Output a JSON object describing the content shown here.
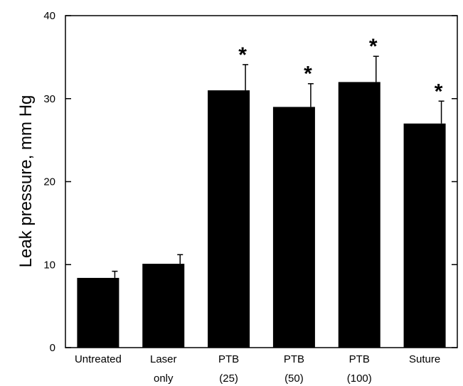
{
  "chart_data": {
    "type": "bar",
    "title": "",
    "ylabel": "Leak pressure, mm Hg",
    "xlabel": "",
    "ylim": [
      0,
      40
    ],
    "yticks": [
      0,
      10,
      20,
      30,
      40
    ],
    "categories": [
      [
        "Untreated"
      ],
      [
        "Laser",
        "only"
      ],
      [
        "PTB",
        "(25)"
      ],
      [
        "PTB",
        "(50)"
      ],
      [
        "PTB",
        "(100)"
      ],
      [
        "Suture"
      ]
    ],
    "values": [
      8.4,
      10.1,
      31.0,
      29.0,
      32.0,
      27.0
    ],
    "errors": [
      0.8,
      1.1,
      3.1,
      2.8,
      3.1,
      2.7
    ],
    "significance": [
      "",
      "",
      "*",
      "*",
      "*",
      "*"
    ],
    "bar_color": "#000000",
    "grid": false,
    "legend": "none"
  }
}
